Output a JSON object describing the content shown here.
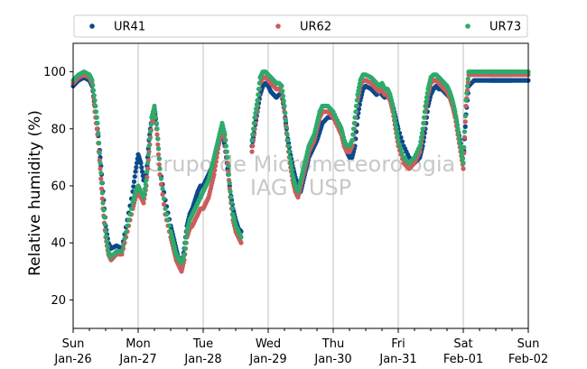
{
  "chart_data": {
    "type": "scatter",
    "title": "",
    "xlabel": "",
    "ylabel": "Relative humidity (%)",
    "ylim": [
      10,
      110
    ],
    "yticks": [
      20,
      40,
      60,
      80,
      100
    ],
    "xlim": [
      0,
      168
    ],
    "xticks": [
      {
        "hour": 0,
        "day": "Sun",
        "date": "Jan-26"
      },
      {
        "hour": 24,
        "day": "Mon",
        "date": "Jan-27"
      },
      {
        "hour": 48,
        "day": "Tue",
        "date": "Jan-28"
      },
      {
        "hour": 72,
        "day": "Wed",
        "date": "Jan-29"
      },
      {
        "hour": 96,
        "day": "Thu",
        "date": "Jan-30"
      },
      {
        "hour": 120,
        "day": "Fri",
        "date": "Jan-31"
      },
      {
        "hour": 144,
        "day": "Sat",
        "date": "Feb-01"
      },
      {
        "hour": 168,
        "day": "Sun",
        "date": "Feb-02"
      }
    ],
    "grid": "vertical",
    "legend_placement": "top",
    "watermark": [
      "Grupo de Micrometeorologia",
      "IAG / USP"
    ],
    "series": [
      {
        "name": "UR41",
        "color": "#0b4a8b",
        "x": [
          0,
          2,
          4,
          6,
          7,
          8,
          9,
          10,
          11,
          12,
          13,
          14,
          16,
          18,
          20,
          22,
          23,
          24,
          25,
          26,
          27,
          28,
          29,
          30,
          31,
          32,
          34,
          36,
          37,
          38,
          39,
          40,
          41,
          42,
          43,
          44,
          45,
          46,
          47,
          48,
          49,
          50,
          51,
          52,
          53,
          54,
          55,
          56,
          57,
          58,
          59,
          60,
          61,
          62,
          66,
          67,
          68,
          69,
          70,
          71,
          72,
          73,
          74,
          75,
          76,
          77,
          78,
          79,
          80,
          81,
          82,
          83,
          84,
          85,
          86,
          87,
          88,
          89,
          90,
          91,
          92,
          94,
          96,
          98,
          99,
          100,
          101,
          102,
          103,
          104,
          105,
          106,
          107,
          108,
          110,
          111,
          112,
          113,
          114,
          115,
          116,
          117,
          118,
          119,
          120,
          122,
          124,
          126,
          128,
          129,
          130,
          131,
          132,
          133,
          134,
          135,
          136,
          137,
          138,
          139,
          140,
          141,
          142,
          143,
          144,
          145,
          146,
          148,
          150,
          152,
          154,
          155,
          156,
          157,
          158,
          159,
          160,
          161,
          162,
          164,
          166,
          168
        ],
        "values": [
          95,
          97,
          98,
          97,
          95,
          88,
          80,
          70,
          58,
          46,
          40,
          38,
          39,
          38,
          48,
          58,
          65,
          71,
          68,
          62,
          64,
          76,
          84,
          87,
          80,
          66,
          55,
          46,
          42,
          38,
          34,
          32,
          38,
          46,
          50,
          52,
          55,
          58,
          60,
          60,
          62,
          64,
          66,
          68,
          72,
          76,
          78,
          74,
          66,
          58,
          52,
          48,
          45,
          44,
          74,
          80,
          86,
          92,
          95,
          96,
          95,
          93,
          92,
          91,
          92,
          92,
          86,
          78,
          72,
          67,
          63,
          60,
          58,
          62,
          66,
          70,
          72,
          74,
          76,
          79,
          82,
          84,
          84,
          82,
          80,
          76,
          72,
          70,
          70,
          74,
          84,
          90,
          94,
          95,
          94,
          93,
          92,
          93,
          92,
          91,
          92,
          90,
          88,
          84,
          80,
          74,
          70,
          68,
          70,
          74,
          80,
          88,
          92,
          94,
          95,
          94,
          94,
          93,
          92,
          91,
          89,
          85,
          80,
          75,
          68,
          85,
          95,
          97,
          97,
          97,
          97,
          97,
          97,
          97,
          97,
          97,
          97,
          97,
          97,
          97,
          97,
          97
        ]
      },
      {
        "name": "UR62",
        "color": "#cd5c5c",
        "x": [
          0,
          2,
          4,
          6,
          7,
          8,
          9,
          10,
          11,
          12,
          13,
          14,
          16,
          18,
          20,
          22,
          23,
          24,
          25,
          26,
          27,
          28,
          29,
          30,
          31,
          32,
          34,
          36,
          37,
          38,
          39,
          40,
          41,
          42,
          43,
          44,
          45,
          46,
          47,
          48,
          49,
          50,
          51,
          52,
          53,
          54,
          55,
          56,
          57,
          58,
          59,
          60,
          61,
          62,
          66,
          67,
          68,
          69,
          70,
          71,
          72,
          73,
          74,
          75,
          76,
          77,
          78,
          79,
          80,
          81,
          82,
          83,
          84,
          85,
          86,
          87,
          88,
          89,
          90,
          91,
          92,
          94,
          96,
          98,
          99,
          100,
          101,
          102,
          103,
          104,
          105,
          106,
          107,
          108,
          110,
          111,
          112,
          113,
          114,
          115,
          116,
          117,
          118,
          119,
          120,
          122,
          124,
          126,
          128,
          129,
          130,
          131,
          132,
          133,
          134,
          135,
          136,
          137,
          138,
          139,
          140,
          141,
          142,
          143,
          144,
          145,
          146,
          148,
          150,
          152,
          154,
          155,
          156,
          157,
          158,
          159,
          160,
          161,
          162,
          164,
          166,
          168
        ],
        "values": [
          96,
          98,
          99,
          98,
          96,
          86,
          78,
          66,
          52,
          42,
          36,
          34,
          36,
          36,
          44,
          52,
          56,
          58,
          56,
          54,
          60,
          72,
          82,
          86,
          78,
          64,
          50,
          42,
          38,
          34,
          32,
          30,
          34,
          42,
          45,
          46,
          48,
          50,
          52,
          52,
          54,
          56,
          60,
          64,
          70,
          76,
          80,
          76,
          68,
          56,
          48,
          44,
          42,
          40,
          72,
          80,
          88,
          96,
          98,
          98,
          97,
          96,
          95,
          94,
          94,
          93,
          86,
          76,
          68,
          62,
          58,
          56,
          60,
          64,
          68,
          72,
          74,
          76,
          80,
          84,
          86,
          86,
          84,
          80,
          78,
          74,
          72,
          72,
          74,
          82,
          90,
          95,
          97,
          97,
          96,
          95,
          94,
          93,
          94,
          92,
          92,
          90,
          86,
          80,
          74,
          68,
          66,
          68,
          72,
          78,
          86,
          92,
          96,
          97,
          97,
          96,
          95,
          94,
          93,
          91,
          88,
          84,
          78,
          72,
          66,
          88,
          99,
          99,
          99,
          99,
          99,
          99,
          99,
          99,
          99,
          99,
          99,
          99,
          99,
          99,
          99,
          99
        ]
      },
      {
        "name": "UR73",
        "color": "#2eaa6a",
        "x": [
          0,
          2,
          4,
          6,
          7,
          8,
          9,
          10,
          11,
          12,
          13,
          14,
          16,
          18,
          20,
          22,
          23,
          24,
          25,
          26,
          27,
          28,
          29,
          30,
          31,
          32,
          34,
          36,
          37,
          38,
          39,
          40,
          41,
          42,
          43,
          44,
          45,
          46,
          47,
          48,
          49,
          50,
          51,
          52,
          53,
          54,
          55,
          56,
          57,
          58,
          59,
          60,
          61,
          62,
          66,
          67,
          68,
          69,
          70,
          71,
          72,
          73,
          74,
          75,
          76,
          77,
          78,
          79,
          80,
          81,
          82,
          83,
          84,
          85,
          86,
          87,
          88,
          89,
          90,
          91,
          92,
          94,
          96,
          98,
          99,
          100,
          101,
          102,
          103,
          104,
          105,
          106,
          107,
          108,
          110,
          111,
          112,
          113,
          114,
          115,
          116,
          117,
          118,
          119,
          120,
          122,
          124,
          126,
          128,
          129,
          130,
          131,
          132,
          133,
          134,
          135,
          136,
          137,
          138,
          139,
          140,
          141,
          142,
          143,
          144,
          145,
          146,
          148,
          150,
          152,
          154,
          155,
          156,
          157,
          158,
          159,
          160,
          161,
          162,
          164,
          166,
          168
        ],
        "values": [
          97,
          99,
          100,
          99,
          97,
          90,
          82,
          68,
          54,
          44,
          37,
          35,
          37,
          37,
          46,
          54,
          58,
          60,
          58,
          56,
          62,
          74,
          84,
          88,
          80,
          66,
          52,
          44,
          40,
          36,
          34,
          33,
          36,
          44,
          48,
          50,
          52,
          54,
          56,
          58,
          60,
          62,
          66,
          70,
          74,
          78,
          82,
          78,
          70,
          58,
          50,
          46,
          44,
          42,
          76,
          84,
          90,
          98,
          100,
          100,
          99,
          98,
          97,
          96,
          96,
          95,
          88,
          78,
          70,
          64,
          60,
          58,
          62,
          66,
          70,
          74,
          76,
          78,
          82,
          86,
          88,
          88,
          86,
          82,
          80,
          76,
          74,
          74,
          76,
          84,
          92,
          97,
          99,
          99,
          98,
          97,
          96,
          95,
          96,
          94,
          94,
          92,
          88,
          82,
          76,
          70,
          68,
          70,
          74,
          80,
          88,
          94,
          98,
          99,
          99,
          98,
          97,
          96,
          95,
          93,
          90,
          86,
          80,
          74,
          68,
          90,
          100,
          100,
          100,
          100,
          100,
          100,
          100,
          100,
          100,
          100,
          100,
          100,
          100,
          100,
          100,
          100
        ]
      }
    ]
  }
}
